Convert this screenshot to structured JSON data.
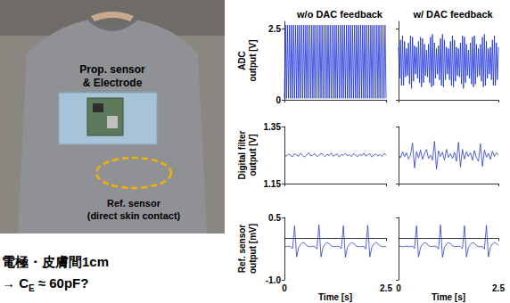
{
  "photo": {
    "sensor_labels": [
      "Prop. sensor",
      "& Electrode"
    ],
    "ref_labels": [
      "Ref. sensor",
      "(direct skin contact)"
    ]
  },
  "note": {
    "line1": "電極・皮膚間1cm",
    "line2": {
      "before": "→ C",
      "sub": "E",
      "after": " ≈ 60pF?"
    }
  },
  "chart_data": [
    {
      "type": "line",
      "title": "w/o DAC feedback",
      "ylabel": "ADC\noutput [V]",
      "color": "#1a30d8",
      "grid": false,
      "tick_labels": "y",
      "xlim": [
        0,
        2.5
      ],
      "xticks": [
        0,
        2.5
      ],
      "ylim": [
        0,
        2.75
      ],
      "yticks": [
        0,
        2.5
      ],
      "x": [
        0,
        0.025,
        0.05,
        0.075,
        0.1,
        0.125,
        0.15,
        0.175,
        0.2,
        0.225,
        0.25,
        0.275,
        0.3,
        0.325,
        0.35,
        0.375,
        0.4,
        0.425,
        0.45,
        0.475,
        0.5,
        0.525,
        0.55,
        0.575,
        0.6,
        0.625,
        0.65,
        0.675,
        0.7,
        0.725,
        0.75,
        0.775,
        0.8,
        0.825,
        0.85,
        0.875,
        0.9,
        0.925,
        0.95,
        0.975,
        1,
        1.025,
        1.05,
        1.075,
        1.1,
        1.125,
        1.15,
        1.175,
        1.2,
        1.225,
        1.25,
        1.275,
        1.3,
        1.325,
        1.35,
        1.375,
        1.4,
        1.425,
        1.45,
        1.475,
        1.5,
        1.525,
        1.55,
        1.575,
        1.6,
        1.625,
        1.65,
        1.675,
        1.7,
        1.725,
        1.75,
        1.775,
        1.8,
        1.825,
        1.85,
        1.875,
        1.9,
        1.925,
        1.95,
        1.975,
        2,
        2.025,
        2.05,
        2.075,
        2.1,
        2.125,
        2.15,
        2.175,
        2.2,
        2.225,
        2.25,
        2.275,
        2.3,
        2.325,
        2.35,
        2.375,
        2.4,
        2.425,
        2.45,
        2.475,
        2.5
      ],
      "values": [
        0.05,
        2.62,
        0.05,
        2.62,
        0.05,
        2.62,
        0.05,
        2.62,
        0.05,
        2.62,
        0.05,
        2.62,
        0.05,
        2.62,
        0.05,
        2.62,
        0.05,
        2.62,
        0.05,
        2.62,
        0.05,
        2.62,
        0.05,
        2.62,
        0.05,
        2.62,
        0.05,
        2.62,
        0.05,
        2.62,
        0.05,
        2.62,
        0.05,
        2.62,
        0.05,
        2.62,
        0.05,
        2.62,
        0.05,
        2.62,
        0.05,
        2.62,
        0.05,
        2.62,
        0.05,
        2.62,
        0.05,
        2.62,
        0.05,
        2.62,
        0.05,
        2.62,
        0.05,
        2.62,
        0.05,
        2.62,
        0.05,
        2.62,
        0.05,
        2.62,
        0.05,
        2.62,
        0.05,
        2.62,
        0.05,
        2.62,
        0.05,
        2.62,
        0.05,
        2.62,
        0.05,
        2.62,
        0.05,
        2.62,
        0.05,
        2.62,
        0.05,
        2.62,
        0.05,
        2.62,
        0.05,
        2.62,
        0.05,
        2.62,
        0.05,
        2.62,
        0.05,
        2.62,
        0.05,
        2.62,
        0.05,
        2.62,
        0.05,
        2.62,
        0.05,
        2.62,
        0.05,
        2.62,
        0.05,
        2.62,
        0.05
      ]
    },
    {
      "type": "line",
      "title": "w/ DAC feedback",
      "color": "#1a30d8",
      "grid": false,
      "tick_labels": false,
      "xlim": [
        0,
        2.5
      ],
      "xticks": [
        0,
        2.5
      ],
      "ylim": [
        0,
        2.75
      ],
      "yticks": [
        0,
        2.5
      ],
      "x": [
        0,
        0.025,
        0.05,
        0.075,
        0.1,
        0.125,
        0.15,
        0.175,
        0.2,
        0.225,
        0.25,
        0.275,
        0.3,
        0.325,
        0.35,
        0.375,
        0.4,
        0.425,
        0.45,
        0.475,
        0.5,
        0.525,
        0.55,
        0.575,
        0.6,
        0.625,
        0.65,
        0.675,
        0.7,
        0.725,
        0.75,
        0.775,
        0.8,
        0.825,
        0.85,
        0.875,
        0.9,
        0.925,
        0.95,
        0.975,
        1,
        1.025,
        1.05,
        1.075,
        1.1,
        1.125,
        1.15,
        1.175,
        1.2,
        1.225,
        1.25,
        1.275,
        1.3,
        1.325,
        1.35,
        1.375,
        1.4,
        1.425,
        1.45,
        1.475,
        1.5,
        1.525,
        1.55,
        1.575,
        1.6,
        1.625,
        1.65,
        1.675,
        1.7,
        1.725,
        1.75,
        1.775,
        1.8,
        1.825,
        1.85,
        1.875,
        1.9,
        1.925,
        1.95,
        1.975,
        2,
        2.025,
        2.05,
        2.075,
        2.1,
        2.125,
        2.15,
        2.175,
        2.2,
        2.225,
        2.25,
        2.275,
        2.3,
        2.325,
        2.35,
        2.375,
        2.4,
        2.425,
        2.45,
        2.475,
        2.5
      ],
      "values": [
        1.85,
        0.75,
        2.1,
        0.5,
        2.25,
        0.5,
        2.05,
        0.8,
        1.8,
        0.85,
        2.0,
        0.55,
        2.25,
        0.4,
        2.2,
        0.65,
        1.9,
        0.9,
        1.85,
        0.75,
        2.05,
        0.6,
        2.2,
        0.45,
        2.15,
        0.6,
        1.95,
        0.85,
        1.75,
        0.8,
        1.95,
        0.6,
        2.2,
        0.45,
        2.3,
        0.5,
        2.0,
        0.75,
        1.8,
        0.9,
        1.9,
        0.7,
        2.15,
        0.5,
        2.3,
        0.45,
        2.1,
        0.7,
        1.85,
        0.9,
        1.8,
        0.7,
        2.05,
        0.5,
        2.25,
        0.45,
        2.1,
        0.65,
        1.85,
        0.85,
        1.8,
        0.8,
        2.0,
        0.55,
        2.25,
        0.4,
        2.2,
        0.6,
        1.95,
        0.85,
        1.75,
        0.75,
        2.0,
        0.55,
        2.2,
        0.45,
        2.25,
        0.55,
        1.95,
        0.8,
        1.8,
        0.85,
        1.95,
        0.65,
        2.2,
        0.45,
        2.3,
        0.5,
        2.05,
        0.75,
        1.8,
        0.9,
        1.85,
        0.7,
        2.1,
        0.5,
        2.25,
        0.5,
        2.0,
        0.7,
        1.85
      ]
    },
    {
      "type": "line",
      "ylabel": "Digital filter\noutput [V]",
      "color": "#2a3fc4",
      "grid": false,
      "tick_labels": "y",
      "xlim": [
        0,
        2.5
      ],
      "xticks": [
        0,
        2.5
      ],
      "ylim": [
        1.15,
        1.35
      ],
      "yticks": [
        1.15,
        1.35
      ],
      "x": [
        0,
        0.05,
        0.1,
        0.15,
        0.2,
        0.25,
        0.3,
        0.35,
        0.4,
        0.45,
        0.5,
        0.55,
        0.6,
        0.65,
        0.7,
        0.75,
        0.8,
        0.85,
        0.9,
        0.95,
        1,
        1.05,
        1.1,
        1.15,
        1.2,
        1.25,
        1.3,
        1.35,
        1.4,
        1.45,
        1.5,
        1.55,
        1.6,
        1.65,
        1.7,
        1.75,
        1.8,
        1.85,
        1.9,
        1.95,
        2,
        2.05,
        2.1,
        2.15,
        2.2,
        2.25,
        2.3,
        2.35,
        2.4,
        2.45,
        2.5
      ],
      "values": [
        1.251,
        1.246,
        1.254,
        1.249,
        1.244,
        1.255,
        1.25,
        1.246,
        1.257,
        1.248,
        1.243,
        1.252,
        1.258,
        1.247,
        1.25,
        1.255,
        1.245,
        1.249,
        1.256,
        1.251,
        1.244,
        1.253,
        1.248,
        1.257,
        1.246,
        1.25,
        1.254,
        1.243,
        1.252,
        1.249,
        1.256,
        1.247,
        1.251,
        1.245,
        1.255,
        1.25,
        1.244,
        1.253,
        1.248,
        1.257,
        1.246,
        1.251,
        1.255,
        1.243,
        1.25,
        1.254,
        1.247,
        1.252,
        1.245,
        1.256,
        1.25
      ]
    },
    {
      "type": "line",
      "color": "#2a3fc4",
      "grid": false,
      "tick_labels": false,
      "xlim": [
        0,
        2.5
      ],
      "xticks": [
        0,
        2.5
      ],
      "ylim": [
        1.15,
        1.35
      ],
      "yticks": [
        1.15,
        1.35
      ],
      "x": [
        0,
        0.05,
        0.1,
        0.15,
        0.2,
        0.25,
        0.3,
        0.35,
        0.4,
        0.45,
        0.5,
        0.55,
        0.6,
        0.65,
        0.7,
        0.75,
        0.8,
        0.85,
        0.9,
        0.95,
        1,
        1.05,
        1.1,
        1.15,
        1.2,
        1.25,
        1.3,
        1.35,
        1.4,
        1.45,
        1.5,
        1.55,
        1.6,
        1.65,
        1.7,
        1.75,
        1.8,
        1.85,
        1.9,
        1.95,
        2,
        2.05,
        2.1,
        2.15,
        2.2,
        2.25,
        2.3,
        2.35,
        2.4,
        2.45,
        2.5
      ],
      "values": [
        1.252,
        1.24,
        1.262,
        1.245,
        1.258,
        1.236,
        1.25,
        1.292,
        1.205,
        1.262,
        1.24,
        1.268,
        1.235,
        1.255,
        1.27,
        1.238,
        1.25,
        1.232,
        1.298,
        1.2,
        1.265,
        1.245,
        1.26,
        1.232,
        1.27,
        1.242,
        1.255,
        1.238,
        1.26,
        1.228,
        1.295,
        1.208,
        1.27,
        1.236,
        1.262,
        1.245,
        1.258,
        1.232,
        1.266,
        1.24,
        1.228,
        1.29,
        1.21,
        1.268,
        1.242,
        1.256,
        1.235,
        1.264,
        1.245,
        1.258,
        1.25
      ]
    },
    {
      "type": "line",
      "ylabel": "Ref. sensor\noutput [mV]",
      "xlabel": "Time [s]",
      "color": "#2a3fc4",
      "grid": false,
      "tick_labels": true,
      "xlim": [
        0,
        2.5
      ],
      "xticks": [
        0,
        2.5
      ],
      "ylim": [
        -1,
        0.5
      ],
      "yticks": [
        {
          "value": -1,
          "label": "-1.0"
        },
        0.5
      ],
      "x": [
        0,
        0.05,
        0.1,
        0.15,
        0.2,
        0.25,
        0.3,
        0.35,
        0.4,
        0.45,
        0.5,
        0.55,
        0.6,
        0.65,
        0.7,
        0.75,
        0.8,
        0.85,
        0.9,
        0.95,
        1,
        1.05,
        1.1,
        1.15,
        1.2,
        1.25,
        1.3,
        1.35,
        1.4,
        1.45,
        1.5,
        1.55,
        1.6,
        1.65,
        1.7,
        1.75,
        1.8,
        1.85,
        1.9,
        1.95,
        2,
        2.05,
        2.1,
        2.15,
        2.2,
        2.25,
        2.3,
        2.35,
        2.4,
        2.45,
        2.5
      ],
      "values": [
        -0.2,
        -0.2,
        -0.19,
        -0.2,
        -0.25,
        0.3,
        -0.45,
        -0.22,
        -0.15,
        -0.1,
        -0.12,
        -0.18,
        -0.2,
        -0.2,
        -0.19,
        -0.2,
        -0.26,
        0.32,
        -0.45,
        -0.22,
        -0.14,
        -0.1,
        -0.13,
        -0.18,
        -0.2,
        -0.2,
        -0.19,
        -0.2,
        -0.25,
        0.3,
        -0.46,
        -0.22,
        -0.15,
        -0.1,
        -0.12,
        -0.18,
        -0.2,
        -0.2,
        -0.2,
        -0.19,
        -0.26,
        0.31,
        -0.45,
        -0.22,
        -0.14,
        -0.1,
        -0.13,
        -0.18,
        -0.2,
        -0.2,
        -0.2
      ]
    },
    {
      "type": "line",
      "xlabel": "Time [s]",
      "color": "#2a3fc4",
      "grid": false,
      "tick_labels": "x",
      "xlim": [
        0,
        2.5
      ],
      "xticks": [
        0,
        2.5
      ],
      "ylim": [
        -1,
        0.5
      ],
      "yticks": [
        {
          "value": -1,
          "label": "-1.0"
        },
        0.5
      ],
      "x": [
        0,
        0.05,
        0.1,
        0.15,
        0.2,
        0.25,
        0.3,
        0.35,
        0.4,
        0.45,
        0.5,
        0.55,
        0.6,
        0.65,
        0.7,
        0.75,
        0.8,
        0.85,
        0.9,
        0.95,
        1,
        1.05,
        1.1,
        1.15,
        1.2,
        1.25,
        1.3,
        1.35,
        1.4,
        1.45,
        1.5,
        1.55,
        1.6,
        1.65,
        1.7,
        1.75,
        1.8,
        1.85,
        1.9,
        1.95,
        2,
        2.05,
        2.1,
        2.15,
        2.2,
        2.25,
        2.3,
        2.35,
        2.4,
        2.45,
        2.5
      ],
      "values": [
        -0.2,
        -0.19,
        -0.2,
        -0.2,
        -0.19,
        -0.2,
        -0.2,
        -0.19,
        -0.25,
        0.3,
        -0.45,
        -0.22,
        -0.15,
        -0.1,
        -0.12,
        -0.18,
        -0.2,
        -0.2,
        -0.19,
        -0.2,
        -0.26,
        0.32,
        -0.46,
        -0.22,
        -0.14,
        -0.1,
        -0.13,
        -0.18,
        -0.2,
        -0.2,
        -0.19,
        -0.2,
        -0.25,
        0.3,
        -0.45,
        -0.22,
        -0.15,
        -0.1,
        -0.12,
        -0.18,
        -0.2,
        -0.2,
        -0.2,
        -0.26,
        0.31,
        -0.45,
        -0.22,
        -0.14,
        -0.1,
        -0.13,
        -0.18
      ]
    }
  ]
}
